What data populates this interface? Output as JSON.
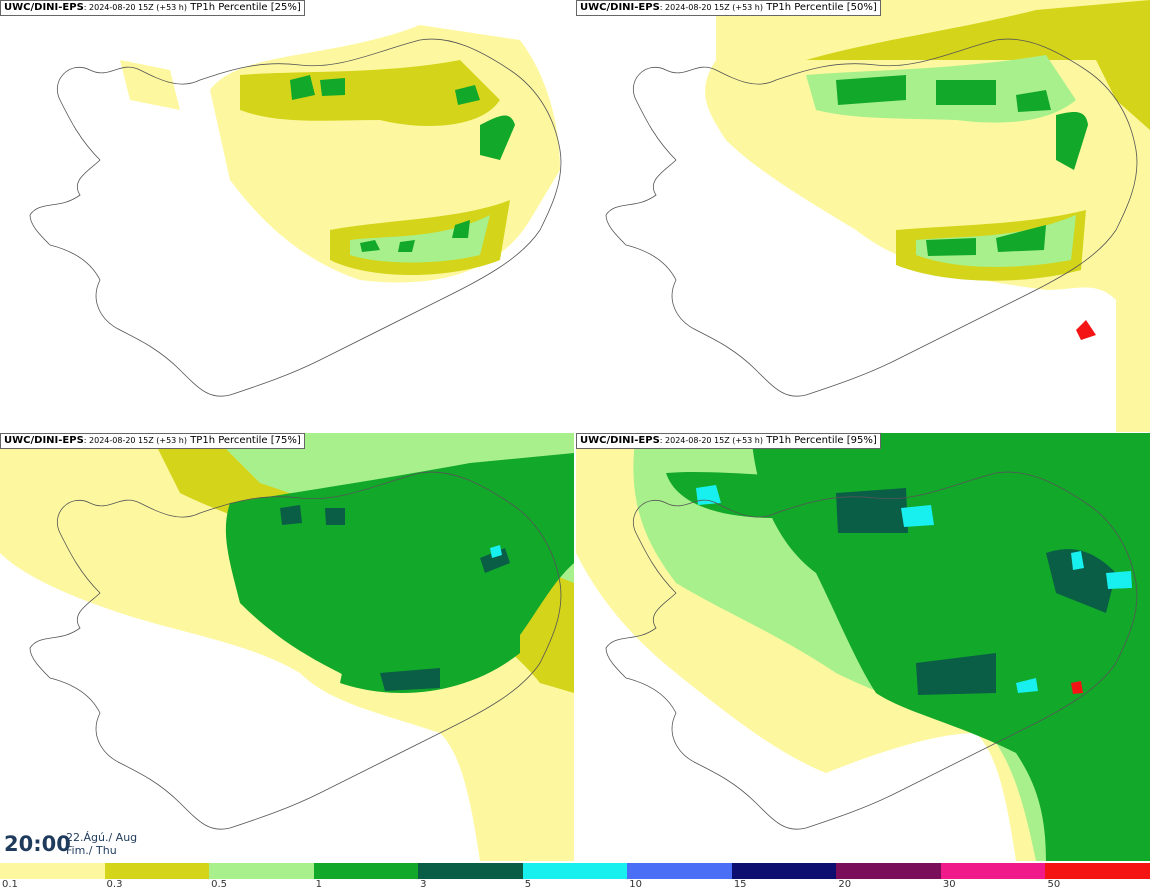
{
  "panels": [
    {
      "source": "UWC/DINI-EPS",
      "run": "2024-08-20 15Z (+53 h)",
      "label": "TP1h Percentile [25%]"
    },
    {
      "source": "UWC/DINI-EPS",
      "run": "2024-08-20 15Z (+53 h)",
      "label": "TP1h Percentile [50%]"
    },
    {
      "source": "UWC/DINI-EPS",
      "run": "2024-08-20 15Z (+53 h)",
      "label": "TP1h Percentile [75%]"
    },
    {
      "source": "UWC/DINI-EPS",
      "run": "2024-08-20 15Z (+53 h)",
      "label": "TP1h Percentile [95%]"
    }
  ],
  "valid_time": {
    "hour": "20:00",
    "date_line1": "22.Ágú./ Aug",
    "date_line2": "Fim./ Thu"
  },
  "legend": {
    "bins": [
      {
        "label": "0.1",
        "color": "#fdf8a0"
      },
      {
        "label": "0.3",
        "color": "#d4d41a"
      },
      {
        "label": "0.5",
        "color": "#a8f08c"
      },
      {
        "label": "1",
        "color": "#12a82a"
      },
      {
        "label": "3",
        "color": "#0a5e46"
      },
      {
        "label": "5",
        "color": "#18f0f0"
      },
      {
        "label": "10",
        "color": "#4a6ef5"
      },
      {
        "label": "15",
        "color": "#0e0e70"
      },
      {
        "label": "20",
        "color": "#7a0e5a"
      },
      {
        "label": "30",
        "color": "#f01a8a"
      },
      {
        "label": "50",
        "color": "#f51414"
      }
    ]
  },
  "colors": {
    "light_yellow": "#fdf8a0",
    "olive": "#d4d41a",
    "light_green": "#a8f08c",
    "green": "#12a82a",
    "dark_green": "#0a5e46",
    "cyan": "#18f0f0",
    "red": "#f51414"
  }
}
